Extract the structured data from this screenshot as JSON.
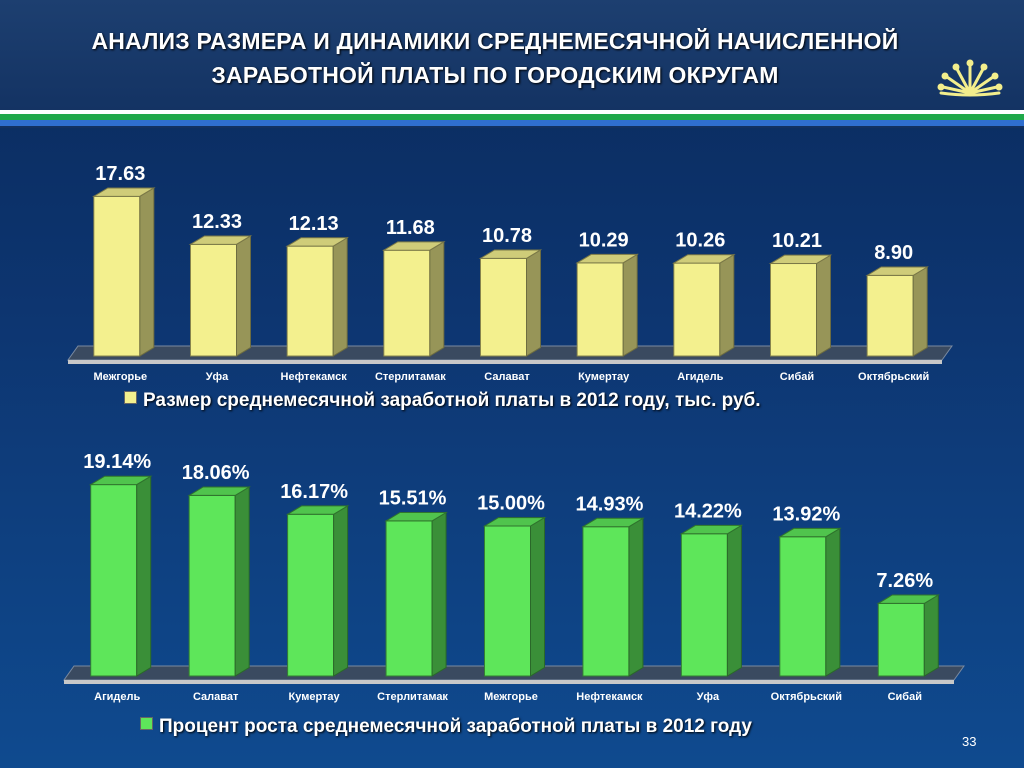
{
  "header": {
    "title_line1": "АНАЛИЗ РАЗМЕРА И ДИНАМИКИ СРЕДНЕМЕСЯЧНОЙ НАЧИСЛЕННОЙ",
    "title_line2": "ЗАРАБОТНОЙ ПЛАТЫ ПО ГОРОДСКИМ ОКРУГАМ"
  },
  "page_number": "33",
  "chart_data": [
    {
      "type": "bar",
      "categories": [
        "Межгорье",
        "Уфа",
        "Нефтекамск",
        "Стерлитамак",
        "Салават",
        "Кумертау",
        "Агидель",
        "Сибай",
        "Октябрьский"
      ],
      "values": [
        17.63,
        12.33,
        12.13,
        11.68,
        10.78,
        10.29,
        10.26,
        10.21,
        8.9
      ],
      "value_labels": [
        "17.63",
        "12.33",
        "12.13",
        "11.68",
        "10.78",
        "10.29",
        "10.26",
        "10.21",
        "8.90"
      ],
      "series": [
        {
          "name": "Размер среднемесячной заработной платы в 2012 году, тыс.  руб.",
          "values": [
            17.63,
            12.33,
            12.13,
            11.68,
            10.78,
            10.29,
            10.26,
            10.21,
            8.9
          ]
        }
      ],
      "legend": "bottom",
      "color": "#f3f08e",
      "ylim": [
        0,
        18
      ]
    },
    {
      "type": "bar",
      "categories": [
        "Агидель",
        "Салават",
        "Кумертау",
        "Стерлитамак",
        "Межгорье",
        "Нефтекамск",
        "Уфа",
        "Октябрьский",
        "Сибай"
      ],
      "values": [
        19.14,
        18.06,
        16.17,
        15.51,
        15.0,
        14.93,
        14.22,
        13.92,
        7.26
      ],
      "value_labels": [
        "19.14%",
        "18.06%",
        "16.17%",
        "15.51%",
        "15.00%",
        "14.93%",
        "14.22%",
        "13.92%",
        "7.26%"
      ],
      "series": [
        {
          "name": "Процент роста среднемесячной заработной платы в 2012 году",
          "values": [
            19.14,
            18.06,
            16.17,
            15.51,
            15.0,
            14.93,
            14.22,
            13.92,
            7.26
          ]
        }
      ],
      "legend": "bottom",
      "color": "#5ee65a",
      "ylim": [
        0,
        20
      ]
    }
  ]
}
